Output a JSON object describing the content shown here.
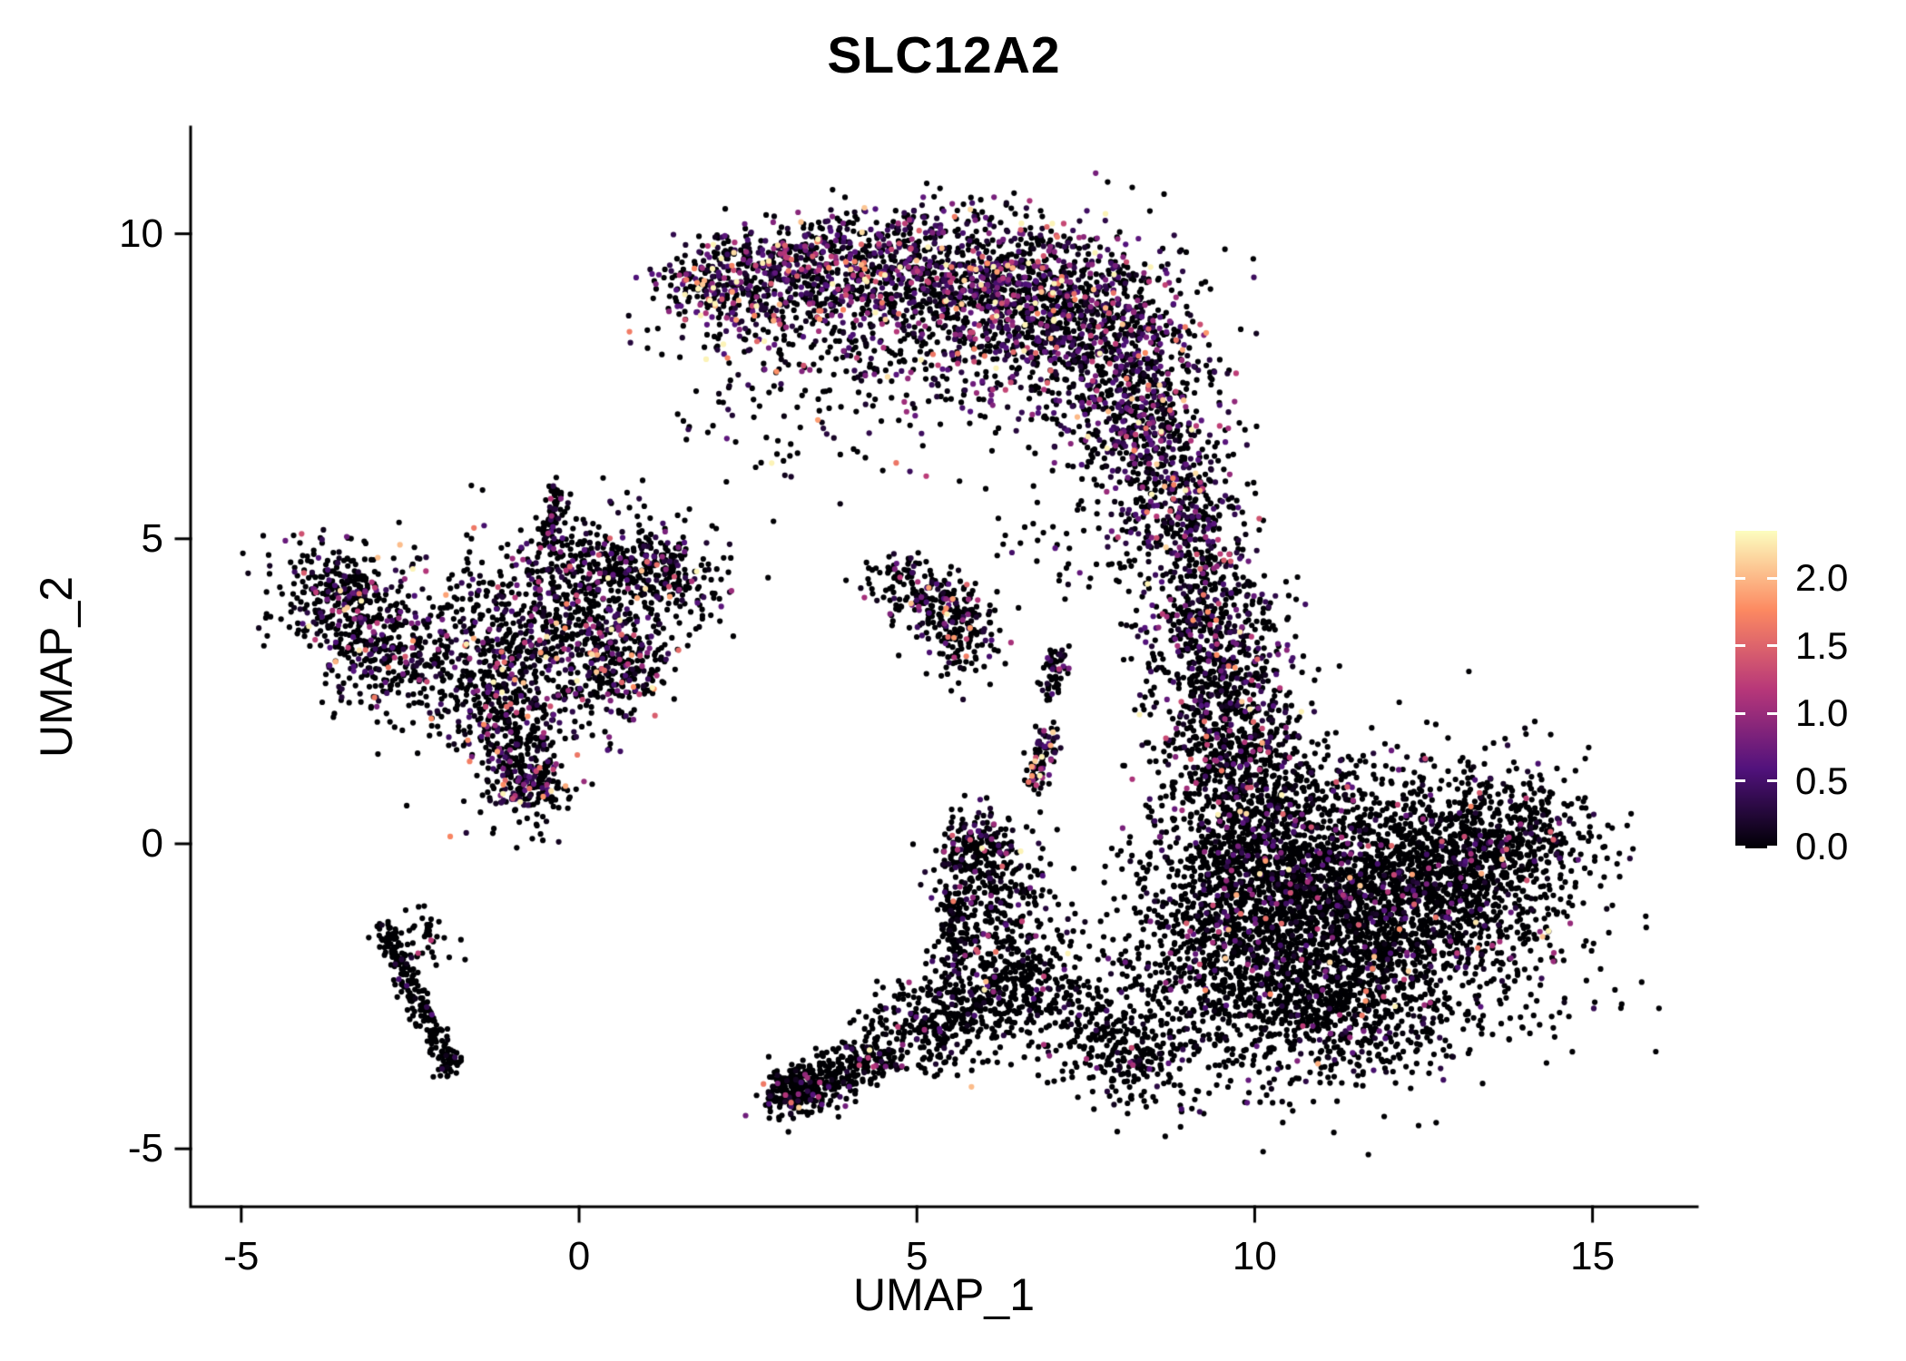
{
  "title": "SLC12A2",
  "chart_data": {
    "type": "scatter",
    "title": "SLC12A2",
    "xlabel": "UMAP_1",
    "ylabel": "UMAP_2",
    "xlim": [
      -5.75,
      16.55
    ],
    "ylim": [
      -5.95,
      11.75
    ],
    "xticks": [
      {
        "v": -5,
        "label": "-5"
      },
      {
        "v": 0,
        "label": "0"
      },
      {
        "v": 5,
        "label": "5"
      },
      {
        "v": 10,
        "label": "10"
      },
      {
        "v": 15,
        "label": "15"
      }
    ],
    "yticks": [
      {
        "v": -5,
        "label": "-5"
      },
      {
        "v": 0,
        "label": "0"
      },
      {
        "v": 5,
        "label": "5"
      },
      {
        "v": 10,
        "label": "10"
      }
    ],
    "grid": false,
    "legend_position": "right",
    "point_radius": 3.1,
    "seed": 7,
    "colorbar": {
      "vmin": 0.0,
      "vmax": 2.35,
      "colormap": "magma",
      "ticks": [
        {
          "v": 2.0,
          "label": "2.0"
        },
        {
          "v": 1.5,
          "label": "1.5"
        },
        {
          "v": 1.0,
          "label": "1.0"
        },
        {
          "v": 0.5,
          "label": "0.5"
        },
        {
          "v": 0.0,
          "label": "0.0"
        }
      ],
      "stops": [
        {
          "t": 0.0,
          "color": "#000004"
        },
        {
          "t": 0.25,
          "color": "#51127c"
        },
        {
          "t": 0.5,
          "color": "#b73779"
        },
        {
          "t": 0.75,
          "color": "#fc8961"
        },
        {
          "t": 1.0,
          "color": "#fcfdbf"
        }
      ]
    },
    "clusters": [
      {
        "region": "top-crescent",
        "type": "gauss",
        "cx": 2.1,
        "cy": 9.2,
        "sx": 0.5,
        "sy": 0.4,
        "n": 260,
        "p_expr": 0.55,
        "expr_scale": 0.8
      },
      {
        "region": "top-crescent",
        "type": "gauss",
        "cx": 3.3,
        "cy": 9.45,
        "sx": 0.6,
        "sy": 0.42,
        "n": 330,
        "p_expr": 0.5,
        "expr_scale": 0.6
      },
      {
        "region": "top-crescent",
        "type": "gauss",
        "cx": 4.6,
        "cy": 9.4,
        "sx": 0.7,
        "sy": 0.5,
        "n": 430,
        "p_expr": 0.5,
        "expr_scale": 0.6
      },
      {
        "region": "top-crescent",
        "type": "gauss",
        "cx": 6.0,
        "cy": 9.15,
        "sx": 0.85,
        "sy": 0.6,
        "n": 620,
        "p_expr": 0.5,
        "expr_scale": 0.6
      },
      {
        "region": "top-crescent",
        "type": "gauss",
        "cx": 7.3,
        "cy": 8.65,
        "sx": 0.8,
        "sy": 0.75,
        "n": 660,
        "p_expr": 0.48,
        "expr_scale": 0.6
      },
      {
        "region": "top-crescent",
        "type": "gauss",
        "cx": 8.2,
        "cy": 7.6,
        "sx": 0.6,
        "sy": 0.8,
        "n": 520,
        "p_expr": 0.45,
        "expr_scale": 0.6
      },
      {
        "region": "top-crescent",
        "type": "gauss",
        "cx": 8.6,
        "cy": 6.3,
        "sx": 0.5,
        "sy": 0.7,
        "n": 330,
        "p_expr": 0.45,
        "expr_scale": 0.55
      },
      {
        "region": "top-crescent",
        "type": "gauss",
        "cx": 8.9,
        "cy": 5.3,
        "sx": 0.45,
        "sy": 0.55,
        "n": 170,
        "p_expr": 0.4,
        "expr_scale": 0.5
      },
      {
        "region": "top-crescent-fill",
        "type": "gauss",
        "cx": 5.6,
        "cy": 7.9,
        "sx": 1.4,
        "sy": 0.8,
        "n": 300,
        "p_expr": 0.42,
        "expr_scale": 0.55
      },
      {
        "region": "top-crescent-fill",
        "type": "gauss",
        "cx": 3.0,
        "cy": 8.4,
        "sx": 0.9,
        "sy": 0.5,
        "n": 150,
        "p_expr": 0.45,
        "expr_scale": 0.6
      },
      {
        "region": "right-column",
        "type": "gauss",
        "cx": 9.2,
        "cy": 4.4,
        "sx": 0.45,
        "sy": 0.6,
        "n": 210,
        "p_expr": 0.35,
        "expr_scale": 0.5
      },
      {
        "region": "right-column",
        "type": "gauss",
        "cx": 9.4,
        "cy": 3.3,
        "sx": 0.55,
        "sy": 0.6,
        "n": 380,
        "p_expr": 0.35,
        "expr_scale": 0.5
      },
      {
        "region": "right-column",
        "type": "gauss",
        "cx": 9.6,
        "cy": 2.1,
        "sx": 0.55,
        "sy": 0.65,
        "n": 340,
        "p_expr": 0.3,
        "expr_scale": 0.5
      },
      {
        "region": "right-column",
        "type": "gauss",
        "cx": 9.85,
        "cy": 1.0,
        "sx": 0.5,
        "sy": 0.55,
        "n": 290,
        "p_expr": 0.25,
        "expr_scale": 0.5
      },
      {
        "region": "right-blob",
        "type": "gauss",
        "cx": 11.4,
        "cy": -1.1,
        "sx": 1.45,
        "sy": 1.15,
        "n": 2600,
        "p_expr": 0.13,
        "expr_scale": 0.5
      },
      {
        "region": "right-blob",
        "type": "gauss",
        "cx": 10.2,
        "cy": -0.2,
        "sx": 0.8,
        "sy": 0.8,
        "n": 650,
        "p_expr": 0.15,
        "expr_scale": 0.5
      },
      {
        "region": "right-blob",
        "type": "gauss",
        "cx": 12.9,
        "cy": -0.4,
        "sx": 0.85,
        "sy": 0.75,
        "n": 650,
        "p_expr": 0.12,
        "expr_scale": 0.5
      },
      {
        "region": "right-blob",
        "type": "gauss",
        "cx": 10.9,
        "cy": -2.7,
        "sx": 1.0,
        "sy": 0.6,
        "n": 560,
        "p_expr": 0.12,
        "expr_scale": 0.5
      },
      {
        "region": "right-blob-edge",
        "type": "gauss",
        "cx": 13.9,
        "cy": 0.1,
        "sx": 0.5,
        "sy": 0.55,
        "n": 230,
        "p_expr": 0.18,
        "expr_scale": 0.55
      },
      {
        "region": "right-blob-edge",
        "type": "gauss",
        "cx": 9.3,
        "cy": -1.6,
        "sx": 0.55,
        "sy": 0.8,
        "n": 360,
        "p_expr": 0.15,
        "expr_scale": 0.5
      },
      {
        "region": "left-group",
        "type": "gauss",
        "cx": -3.55,
        "cy": 4.15,
        "sx": 0.5,
        "sy": 0.45,
        "n": 300,
        "p_expr": 0.3,
        "expr_scale": 0.6
      },
      {
        "region": "left-group",
        "type": "gauss",
        "cx": -2.9,
        "cy": 3.15,
        "sx": 0.5,
        "sy": 0.5,
        "n": 260,
        "p_expr": 0.3,
        "expr_scale": 0.6
      },
      {
        "region": "left-group",
        "type": "gauss",
        "cx": -0.6,
        "cy": 3.4,
        "sx": 0.95,
        "sy": 0.8,
        "n": 660,
        "p_expr": 0.28,
        "expr_scale": 0.65
      },
      {
        "region": "left-group",
        "type": "gauss",
        "cx": 0.4,
        "cy": 4.5,
        "sx": 0.75,
        "sy": 0.45,
        "n": 330,
        "p_expr": 0.3,
        "expr_scale": 0.65
      },
      {
        "region": "left-group",
        "type": "gauss",
        "cx": 1.2,
        "cy": 4.4,
        "sx": 0.5,
        "sy": 0.35,
        "n": 150,
        "p_expr": 0.3,
        "expr_scale": 0.6
      },
      {
        "region": "left-group-tail",
        "type": "gauss",
        "cx": -1.0,
        "cy": 1.9,
        "sx": 0.45,
        "sy": 0.6,
        "n": 280,
        "p_expr": 0.3,
        "expr_scale": 0.6
      },
      {
        "region": "left-group-tail",
        "type": "gauss",
        "cx": -0.75,
        "cy": 0.95,
        "sx": 0.3,
        "sy": 0.3,
        "n": 170,
        "p_expr": 0.38,
        "expr_scale": 0.6
      },
      {
        "region": "left-group-knot",
        "type": "gauss",
        "cx": 0.55,
        "cy": 2.95,
        "sx": 0.4,
        "sy": 0.4,
        "n": 220,
        "p_expr": 0.35,
        "expr_scale": 0.6
      },
      {
        "region": "left-group-spike",
        "type": "line",
        "x1": -0.45,
        "y1": 5.0,
        "x2": -0.3,
        "y2": 5.85,
        "w": 0.09,
        "n": 70,
        "p_expr": 0.25,
        "expr_scale": 0.5
      },
      {
        "region": "left-group-bridge",
        "type": "gauss",
        "cx": -1.8,
        "cy": 2.6,
        "sx": 0.6,
        "sy": 0.6,
        "n": 120,
        "p_expr": 0.3,
        "expr_scale": 0.6
      },
      {
        "region": "left-bottom-tail",
        "type": "line",
        "x1": -2.95,
        "y1": -1.25,
        "x2": -2.35,
        "y2": -2.7,
        "w": 0.1,
        "n": 120,
        "p_expr": 0.05,
        "expr_scale": 0.4
      },
      {
        "region": "left-bottom-tail",
        "type": "line",
        "x1": -2.35,
        "y1": -2.7,
        "x2": -1.85,
        "y2": -3.75,
        "w": 0.1,
        "n": 110,
        "p_expr": 0.05,
        "expr_scale": 0.4
      },
      {
        "region": "left-bottom-tail",
        "type": "gauss",
        "cx": -2.2,
        "cy": -1.6,
        "sx": 0.3,
        "sy": 0.3,
        "n": 40,
        "p_expr": 0.05,
        "expr_scale": 0.4
      },
      {
        "region": "mid-small",
        "type": "gauss",
        "cx": 5.25,
        "cy": 3.95,
        "sx": 0.35,
        "sy": 0.3,
        "n": 140,
        "p_expr": 0.3,
        "expr_scale": 0.5
      },
      {
        "region": "mid-small",
        "type": "gauss",
        "cx": 5.7,
        "cy": 3.35,
        "sx": 0.3,
        "sy": 0.4,
        "n": 130,
        "p_expr": 0.3,
        "expr_scale": 0.5
      },
      {
        "region": "mid-small",
        "type": "gauss",
        "cx": 4.7,
        "cy": 4.35,
        "sx": 0.3,
        "sy": 0.25,
        "n": 60,
        "p_expr": 0.25,
        "expr_scale": 0.5
      },
      {
        "region": "mid-streak",
        "type": "line",
        "x1": 6.95,
        "y1": 2.35,
        "x2": 7.1,
        "y2": 3.2,
        "w": 0.08,
        "n": 60,
        "p_expr": 0.25,
        "expr_scale": 0.5
      },
      {
        "region": "mid-streak",
        "type": "line",
        "x1": 6.75,
        "y1": 0.9,
        "x2": 6.95,
        "y2": 1.9,
        "w": 0.1,
        "n": 90,
        "p_expr": 0.4,
        "expr_scale": 0.8
      },
      {
        "region": "bottom-band",
        "type": "line",
        "x1": 3.05,
        "y1": -4.2,
        "x2": 4.6,
        "y2": -3.35,
        "w": 0.22,
        "n": 330,
        "p_expr": 0.12,
        "expr_scale": 0.5
      },
      {
        "region": "bottom-band-knot",
        "type": "gauss",
        "cx": 3.15,
        "cy": -4.05,
        "sx": 0.18,
        "sy": 0.18,
        "n": 120,
        "p_expr": 0.22,
        "expr_scale": 0.6
      },
      {
        "region": "bottom-band",
        "type": "gauss",
        "cx": 5.2,
        "cy": -3.0,
        "sx": 0.5,
        "sy": 0.4,
        "n": 260,
        "p_expr": 0.1,
        "expr_scale": 0.5
      },
      {
        "region": "bottom-band",
        "type": "gauss",
        "cx": 6.0,
        "cy": -2.4,
        "sx": 0.45,
        "sy": 0.4,
        "n": 220,
        "p_expr": 0.1,
        "expr_scale": 0.5
      },
      {
        "region": "bottom-band",
        "type": "gauss",
        "cx": 6.8,
        "cy": -2.2,
        "sx": 0.45,
        "sy": 0.55,
        "n": 200,
        "p_expr": 0.12,
        "expr_scale": 0.5
      },
      {
        "region": "bottom-branch",
        "type": "line",
        "x1": 5.6,
        "y1": -1.9,
        "x2": 5.5,
        "y2": -0.9,
        "w": 0.12,
        "n": 90,
        "p_expr": 0.15,
        "expr_scale": 0.5
      },
      {
        "region": "bottom-branch-knot",
        "type": "gauss",
        "cx": 5.85,
        "cy": -0.15,
        "sx": 0.3,
        "sy": 0.4,
        "n": 230,
        "p_expr": 0.28,
        "expr_scale": 0.6
      },
      {
        "region": "bottom-branch",
        "type": "gauss",
        "cx": 6.25,
        "cy": -1.0,
        "sx": 0.4,
        "sy": 0.55,
        "n": 180,
        "p_expr": 0.15,
        "expr_scale": 0.5
      },
      {
        "region": "bottom-bridge",
        "type": "gauss",
        "cx": 7.6,
        "cy": -3.1,
        "sx": 0.6,
        "sy": 0.5,
        "n": 190,
        "p_expr": 0.1,
        "expr_scale": 0.5
      },
      {
        "region": "bottom-bridge",
        "type": "gauss",
        "cx": 8.3,
        "cy": -3.6,
        "sx": 0.5,
        "sy": 0.4,
        "n": 150,
        "p_expr": 0.1,
        "expr_scale": 0.5
      },
      {
        "region": "sparse-misc",
        "type": "gauss",
        "cx": 2.8,
        "cy": 6.9,
        "sx": 0.8,
        "sy": 0.7,
        "n": 45,
        "p_expr": 0.3,
        "expr_scale": 0.5
      },
      {
        "region": "sparse-misc",
        "type": "gauss",
        "cx": 7.3,
        "cy": 4.9,
        "sx": 0.7,
        "sy": 0.6,
        "n": 40,
        "p_expr": 0.3,
        "expr_scale": 0.5
      }
    ]
  }
}
